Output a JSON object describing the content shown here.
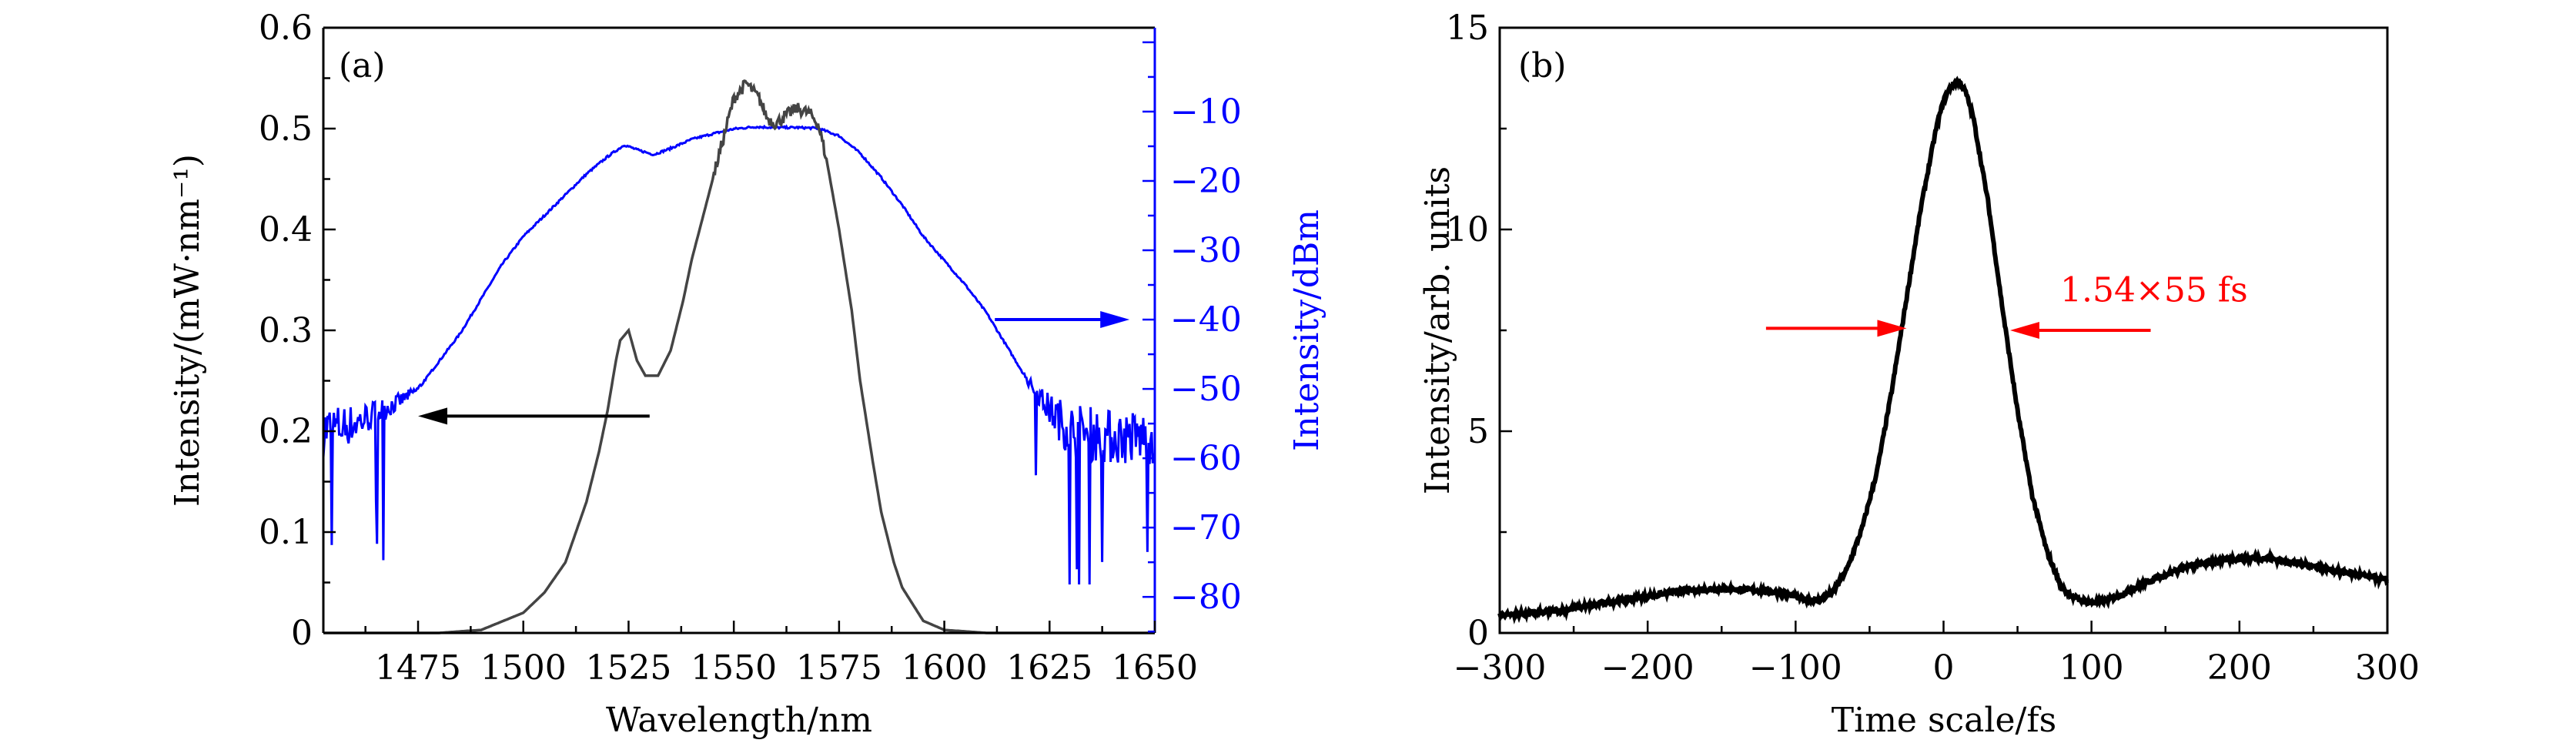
{
  "chart_data": [
    {
      "type": "line",
      "panel_label": "(a)",
      "xlabel": "Wavelength/nm",
      "ylabel": "Intensity/(mW·nm⁻¹)",
      "y2label": "Intensity/dBm",
      "xlim": [
        1452.5,
        1650
      ],
      "ylim": [
        0,
        0.6
      ],
      "y2lim": [
        -85.2,
        2.1
      ],
      "xticks": [
        1475,
        1500,
        1525,
        1550,
        1575,
        1600,
        1625,
        1650
      ],
      "yticks": [
        0,
        0.1,
        0.2,
        0.3,
        0.4,
        0.5,
        0.6
      ],
      "ytick_labels": [
        "0",
        "0.1",
        "0.2",
        "0.3",
        "0.4",
        "0.5",
        "0.6"
      ],
      "y2ticks": [
        -10,
        -20,
        -30,
        -40,
        -50,
        -60,
        -70,
        -80
      ],
      "y2tick_labels": [
        "−10",
        "−20",
        "−30",
        "−40",
        "−50",
        "−60",
        "−70",
        "−80"
      ],
      "colors": {
        "linear": "#444444",
        "log": "#0000ff"
      },
      "series": [
        {
          "name": "linear spectrum (left axis)",
          "axis": "left",
          "x": [
            1452,
            1480,
            1490,
            1500,
            1505,
            1510,
            1515,
            1518,
            1520,
            1522,
            1523,
            1525,
            1527,
            1529,
            1532,
            1535,
            1538,
            1540,
            1545,
            1550,
            1553,
            1556,
            1558,
            1560,
            1563,
            1565,
            1568,
            1570,
            1572,
            1575,
            1578,
            1580,
            1583,
            1585,
            1588,
            1590,
            1595,
            1600,
            1610,
            1650
          ],
          "y": [
            0,
            0,
            0.003,
            0.02,
            0.04,
            0.07,
            0.13,
            0.18,
            0.22,
            0.27,
            0.29,
            0.3,
            0.27,
            0.255,
            0.255,
            0.28,
            0.33,
            0.37,
            0.45,
            0.53,
            0.545,
            0.53,
            0.51,
            0.505,
            0.515,
            0.52,
            0.515,
            0.505,
            0.47,
            0.4,
            0.32,
            0.25,
            0.17,
            0.12,
            0.07,
            0.045,
            0.012,
            0.003,
            0,
            0
          ]
        },
        {
          "name": "log spectrum (right axis)",
          "axis": "right",
          "x": [
            1452,
            1460,
            1470,
            1475,
            1480,
            1485,
            1490,
            1495,
            1500,
            1505,
            1510,
            1515,
            1520,
            1524,
            1527,
            1531,
            1535,
            1540,
            1545,
            1550,
            1555,
            1560,
            1565,
            1570,
            1575,
            1580,
            1585,
            1590,
            1595,
            1600,
            1605,
            1610,
            1615,
            1620,
            1625,
            1630,
            1640,
            1650
          ],
          "y": [
            -56,
            -55,
            -52,
            -50,
            -46,
            -42,
            -37,
            -32,
            -28,
            -25,
            -22,
            -19,
            -16.5,
            -14.8,
            -15.5,
            -16.2,
            -15.3,
            -14,
            -13.2,
            -12.5,
            -12.2,
            -12.3,
            -12.3,
            -12.4,
            -13.5,
            -16,
            -19.5,
            -23.5,
            -28,
            -31.5,
            -35,
            -39,
            -44,
            -49,
            -53,
            -56,
            -57,
            -57
          ]
        }
      ],
      "annotations": [
        {
          "type": "arrow",
          "from": [
            1530,
            0.215
          ],
          "to": [
            1475,
            0.215
          ],
          "color": "#000000",
          "meaning": "left axis"
        },
        {
          "type": "arrow",
          "from": [
            1612,
            -40
          ],
          "to": [
            1644,
            -40
          ],
          "color": "#0000ff",
          "axis": "right",
          "meaning": "right axis"
        }
      ]
    },
    {
      "type": "line",
      "panel_label": "(b)",
      "xlabel": "Time scale/fs",
      "ylabel": "Intensity/arb. units",
      "xlim": [
        -300,
        300
      ],
      "ylim": [
        0,
        15
      ],
      "xticks": [
        -300,
        -200,
        -100,
        0,
        100,
        200,
        300
      ],
      "xtick_labels": [
        "−300",
        "−200",
        "−100",
        "0",
        "100",
        "200",
        "300"
      ],
      "yticks": [
        0,
        5,
        10,
        15
      ],
      "ytick_labels": [
        "0",
        "5",
        "10",
        "15"
      ],
      "colors": {
        "trace": "#000000",
        "annotation": "#ff0000"
      },
      "series": [
        {
          "name": "autocorrelation trace",
          "x": [
            -300,
            -270,
            -250,
            -220,
            -200,
            -175,
            -150,
            -125,
            -110,
            -95,
            -85,
            -75,
            -65,
            -55,
            -45,
            -35,
            -25,
            -15,
            -5,
            0,
            5,
            10,
            15,
            20,
            30,
            40,
            50,
            60,
            70,
            80,
            90,
            100,
            110,
            120,
            140,
            160,
            180,
            200,
            220,
            250,
            280,
            300
          ],
          "y": [
            0.45,
            0.5,
            0.6,
            0.8,
            0.9,
            1.05,
            1.1,
            1.05,
            1.0,
            0.85,
            0.8,
            1.0,
            1.6,
            2.6,
            4.0,
            6.0,
            8.3,
            10.6,
            12.5,
            13.2,
            13.55,
            13.7,
            13.4,
            12.8,
            10.7,
            8.0,
            5.5,
            3.4,
            2.0,
            1.1,
            0.85,
            0.75,
            0.8,
            0.95,
            1.3,
            1.6,
            1.75,
            1.85,
            1.85,
            1.65,
            1.45,
            1.3
          ]
        }
      ],
      "annotations": [
        {
          "type": "arrow",
          "from": [
            -120,
            7.55
          ],
          "to": [
            -25,
            7.55
          ],
          "color": "#ff0000"
        },
        {
          "type": "arrow",
          "from": [
            140,
            7.5
          ],
          "to": [
            45,
            7.5
          ],
          "color": "#ff0000"
        },
        {
          "type": "text",
          "text": "1.54×55 fs",
          "at": [
            85,
            8.5
          ],
          "color": "#ff0000"
        }
      ]
    }
  ]
}
